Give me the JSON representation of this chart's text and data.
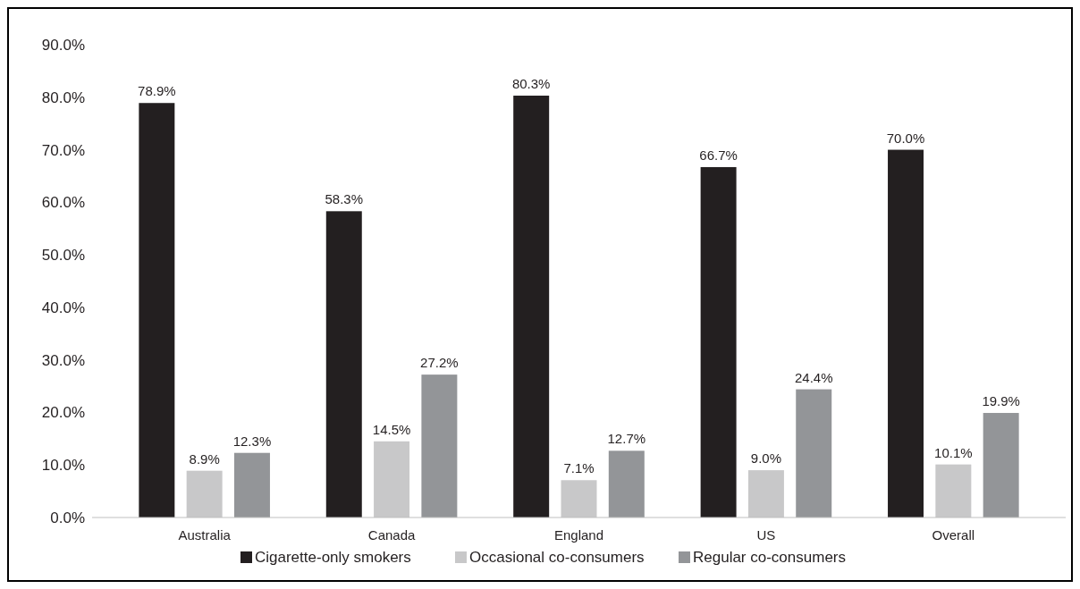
{
  "chart_data": {
    "type": "bar",
    "categories": [
      "Australia",
      "Canada",
      "England",
      "US",
      "Overall"
    ],
    "series": [
      {
        "name": "Cigarette-only smokers",
        "color": "#231f20",
        "values": [
          78.9,
          58.3,
          80.3,
          66.7,
          70.0
        ],
        "value_labels": [
          "78.9%",
          "58.3%",
          "80.3%",
          "66.7%",
          "70.0%"
        ]
      },
      {
        "name": "Occasional co-consumers",
        "color": "#c8c8c9",
        "values": [
          8.9,
          14.5,
          7.1,
          9.0,
          10.1
        ],
        "value_labels": [
          "8.9%",
          "14.5%",
          "7.1%",
          "9.0%",
          "10.1%"
        ]
      },
      {
        "name": "Regular co-consumers",
        "color": "#939598",
        "values": [
          12.3,
          27.2,
          12.7,
          24.4,
          19.9
        ],
        "value_labels": [
          "12.3%",
          "27.2%",
          "12.7%",
          "24.4%",
          "19.9%"
        ]
      }
    ],
    "ylim": [
      0,
      90
    ],
    "yticks": [
      {
        "value": 0,
        "label": "0.0%"
      },
      {
        "value": 10,
        "label": "10.0%"
      },
      {
        "value": 20,
        "label": "20.0%"
      },
      {
        "value": 30,
        "label": "30.0%"
      },
      {
        "value": 40,
        "label": "40.0%"
      },
      {
        "value": 50,
        "label": "50.0%"
      },
      {
        "value": 60,
        "label": "60.0%"
      },
      {
        "value": 70,
        "label": "70.0%"
      },
      {
        "value": 80,
        "label": "80.0%"
      },
      {
        "value": 90,
        "label": "90.0%"
      }
    ],
    "grid": false,
    "legend": "bottom"
  }
}
